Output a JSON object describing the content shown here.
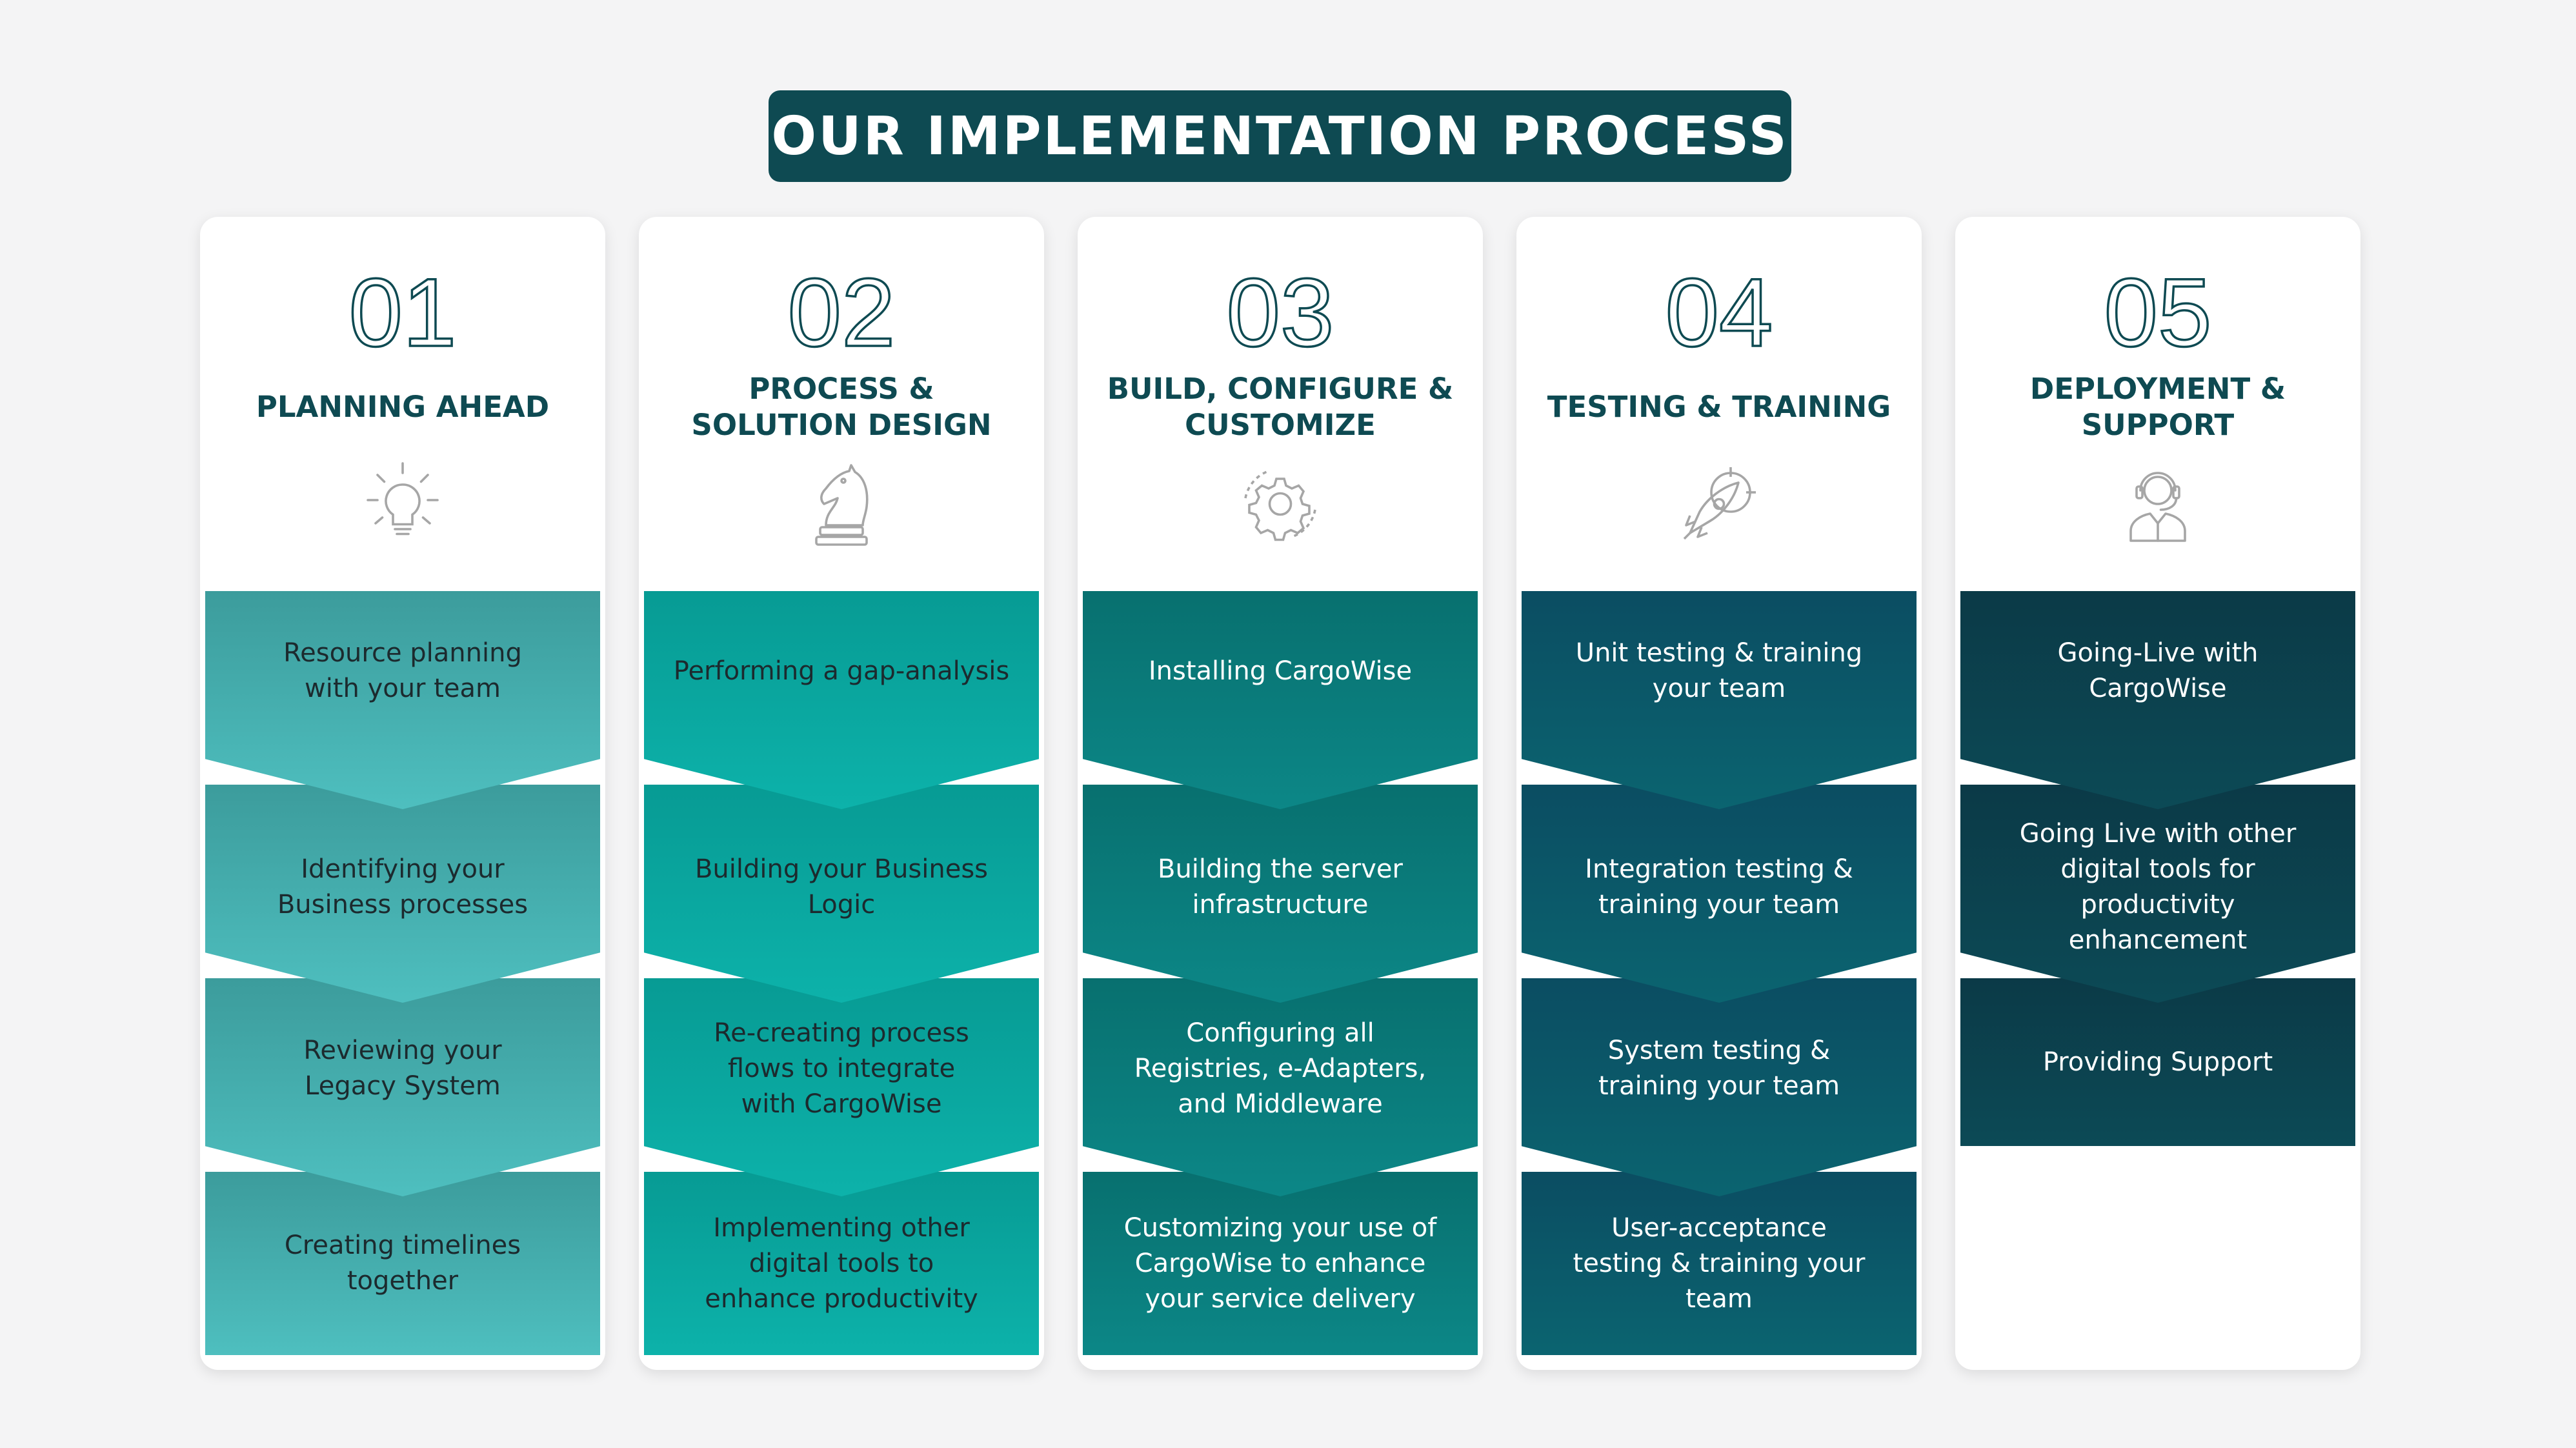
{
  "title": "OUR IMPLEMENTATION PROCESS",
  "colors": {
    "background": "#f4f4f5",
    "title_bg": "#0e4a52",
    "heading_text": "#0e4a52",
    "step_colors": [
      "#45b7b7",
      "#0aa7a0",
      "#0a7b7d",
      "#0b5767",
      "#0c3f4c"
    ]
  },
  "columns": [
    {
      "number": "01",
      "title": "PLANNING AHEAD",
      "icon": "lightbulb-icon",
      "steps": [
        "Resource planning\nwith your team",
        "Identifying your\nBusiness processes",
        "Reviewing your\nLegacy System",
        "Creating timelines\ntogether"
      ]
    },
    {
      "number": "02",
      "title": "PROCESS &\nSOLUTION DESIGN",
      "icon": "chess-knight-icon",
      "steps": [
        "Performing a gap-analysis",
        "Building your Business\nLogic",
        "Re-creating process\nflows to integrate\nwith CargoWise",
        "Implementing other\ndigital tools to\nenhance productivity"
      ]
    },
    {
      "number": "03",
      "title": "BUILD, CONFIGURE &\nCUSTOMIZE",
      "icon": "gear-icon",
      "steps": [
        "Installing CargoWise",
        "Building the server\ninfrastructure",
        "Configuring all\nRegistries, e-Adapters,\nand Middleware",
        "Customizing your use of\nCargoWise to enhance\nyour service delivery"
      ]
    },
    {
      "number": "04",
      "title": "TESTING & TRAINING",
      "icon": "rocket-target-icon",
      "steps": [
        "Unit testing & training\nyour team",
        "Integration testing &\ntraining your team",
        "System testing &\ntraining your team",
        "User-acceptance\ntesting & training your\nteam"
      ]
    },
    {
      "number": "05",
      "title": "DEPLOYMENT &\nSUPPORT",
      "icon": "support-agent-icon",
      "steps": [
        "Going-Live with\nCargoWise",
        "Going Live with other\ndigital tools for\nproductivity\nenhancement",
        "Providing Support"
      ]
    }
  ]
}
